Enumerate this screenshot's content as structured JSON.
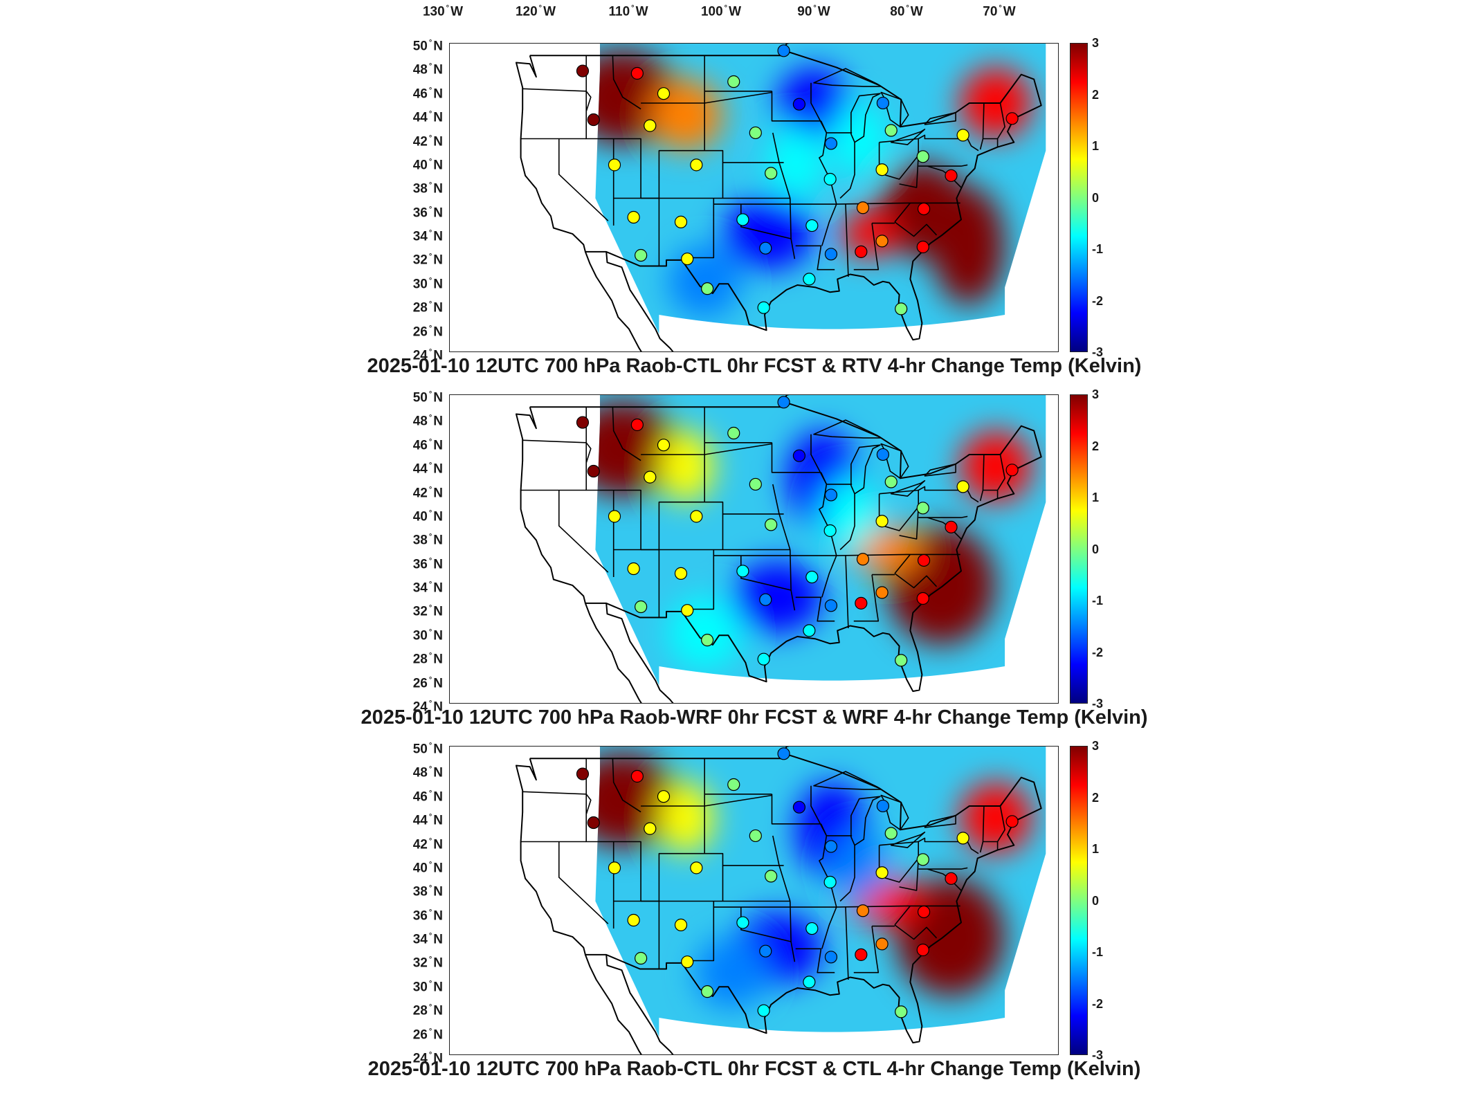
{
  "longitude_labels": [
    {
      "deg": "130",
      "hemi": "W"
    },
    {
      "deg": "120",
      "hemi": "W"
    },
    {
      "deg": "110",
      "hemi": "W"
    },
    {
      "deg": "100",
      "hemi": "W"
    },
    {
      "deg": "90",
      "hemi": "W"
    },
    {
      "deg": "80",
      "hemi": "W"
    },
    {
      "deg": "70",
      "hemi": "W"
    }
  ],
  "latitude_labels": [
    {
      "deg": "50",
      "hemi": "N"
    },
    {
      "deg": "48",
      "hemi": "N"
    },
    {
      "deg": "46",
      "hemi": "N"
    },
    {
      "deg": "44",
      "hemi": "N"
    },
    {
      "deg": "42",
      "hemi": "N"
    },
    {
      "deg": "40",
      "hemi": "N"
    },
    {
      "deg": "38",
      "hemi": "N"
    },
    {
      "deg": "36",
      "hemi": "N"
    },
    {
      "deg": "34",
      "hemi": "N"
    },
    {
      "deg": "32",
      "hemi": "N"
    },
    {
      "deg": "30",
      "hemi": "N"
    },
    {
      "deg": "28",
      "hemi": "N"
    },
    {
      "deg": "26",
      "hemi": "N"
    },
    {
      "deg": "24",
      "hemi": "N"
    }
  ],
  "colorbar": {
    "ticks": [
      "3",
      "2",
      "1",
      "0",
      "-1",
      "-2",
      "-3"
    ],
    "colormap": [
      "#800000",
      "#ff0000",
      "#ff8000",
      "#ffff00",
      "#80ff80",
      "#00ffff",
      "#0080ff",
      "#0000ff",
      "#000080"
    ]
  },
  "panels": [
    {
      "title": "2025-01-10 12UTC 700 hPa Raob-CTL 0hr FCST & RTV 4-hr Change Temp (Kelvin)"
    },
    {
      "title": "2025-01-10 12UTC 700 hPa Raob-WRF 0hr FCST & WRF 4-hr Change Temp (Kelvin)"
    },
    {
      "title": "2025-01-10 12UTC 700 hPa Raob-CTL 0hr FCST & CTL 4-hr Change Temp (Kelvin)"
    }
  ],
  "map_extent": {
    "lon_min": -132,
    "lon_max": -65,
    "lat_min": 24,
    "lat_max": 50,
    "value_range": [
      -3,
      3
    ]
  },
  "raob_stations": [
    {
      "lon": -117.4,
      "lat": 47.7,
      "value": 3.0
    },
    {
      "lon": -111.4,
      "lat": 47.5,
      "value": 2.3
    },
    {
      "lon": -108.5,
      "lat": 45.8,
      "value": 1.0
    },
    {
      "lon": -100.8,
      "lat": 46.8,
      "value": 0.3
    },
    {
      "lon": -93.6,
      "lat": 44.9,
      "value": -2.5
    },
    {
      "lon": -84.4,
      "lat": 45.0,
      "value": -1.5
    },
    {
      "lon": -116.2,
      "lat": 43.6,
      "value": 2.8
    },
    {
      "lon": -110.0,
      "lat": 43.1,
      "value": 1.0
    },
    {
      "lon": -98.4,
      "lat": 42.5,
      "value": 0.0
    },
    {
      "lon": -90.1,
      "lat": 41.6,
      "value": -1.2
    },
    {
      "lon": -83.5,
      "lat": 42.7,
      "value": 0.3
    },
    {
      "lon": -75.6,
      "lat": 42.3,
      "value": 0.8
    },
    {
      "lon": -113.9,
      "lat": 39.8,
      "value": 0.6
    },
    {
      "lon": -104.9,
      "lat": 39.8,
      "value": 0.5
    },
    {
      "lon": -96.7,
      "lat": 39.1,
      "value": 0.0
    },
    {
      "lon": -90.2,
      "lat": 38.6,
      "value": -0.4
    },
    {
      "lon": -84.5,
      "lat": 39.4,
      "value": 1.0
    },
    {
      "lon": -80.0,
      "lat": 40.5,
      "value": 0.3
    },
    {
      "lon": -76.9,
      "lat": 38.9,
      "value": 2.3
    },
    {
      "lon": -111.8,
      "lat": 35.4,
      "value": 0.4
    },
    {
      "lon": -106.6,
      "lat": 35.0,
      "value": 0.8
    },
    {
      "lon": -99.8,
      "lat": 35.2,
      "value": -0.6
    },
    {
      "lon": -92.2,
      "lat": 34.7,
      "value": -0.6
    },
    {
      "lon": -86.6,
      "lat": 36.2,
      "value": 1.3
    },
    {
      "lon": -79.9,
      "lat": 36.1,
      "value": 2.1
    },
    {
      "lon": -111.0,
      "lat": 32.2,
      "value": 0.1
    },
    {
      "lon": -105.9,
      "lat": 31.9,
      "value": 1.0
    },
    {
      "lon": -97.3,
      "lat": 32.8,
      "value": -1.6
    },
    {
      "lon": -90.1,
      "lat": 32.3,
      "value": -1.8
    },
    {
      "lon": -84.5,
      "lat": 33.4,
      "value": 1.8
    },
    {
      "lon": -86.8,
      "lat": 32.5,
      "value": 2.1
    },
    {
      "lon": -80.0,
      "lat": 32.9,
      "value": 2.3
    },
    {
      "lon": -103.7,
      "lat": 29.4,
      "value": -0.1
    },
    {
      "lon": -97.5,
      "lat": 27.8,
      "value": -0.7
    },
    {
      "lon": -92.5,
      "lat": 30.2,
      "value": -0.4
    },
    {
      "lon": -82.4,
      "lat": 27.7,
      "value": 0.2
    },
    {
      "lon": -70.2,
      "lat": 43.7,
      "value": 2.6
    },
    {
      "lon": -95.3,
      "lat": 49.4,
      "value": -1.3
    }
  ]
}
